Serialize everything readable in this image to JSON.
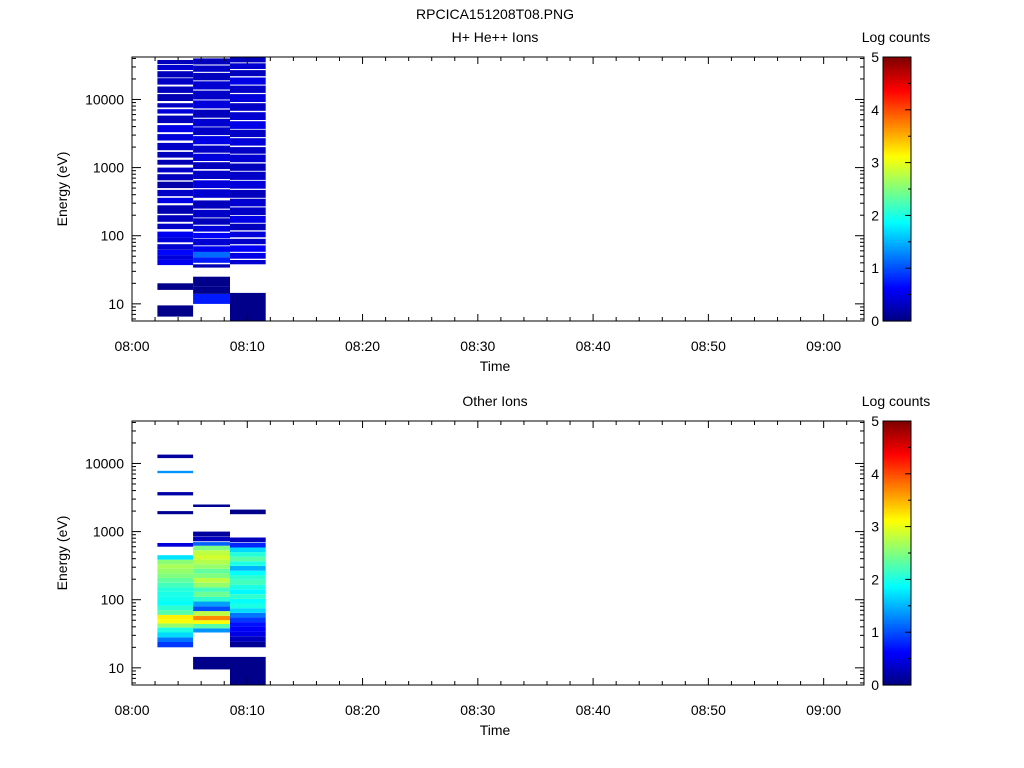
{
  "chart_data": [
    {
      "type": "heatmap",
      "title": "RPCICA151208T08.PNG",
      "subtitle": "H+ He++ Ions",
      "xlabel": "Time",
      "ylabel": "Energy (eV)",
      "yscale": "log",
      "ylim": [
        5.6,
        42000
      ],
      "xlim": [
        "08:00",
        "09:03.5"
      ],
      "x_ticks": [
        "08:00",
        "08:10",
        "08:20",
        "08:30",
        "08:40",
        "08:50",
        "09:00"
      ],
      "y_ticks": [
        10,
        100,
        1000,
        10000
      ],
      "y_tick_labels": [
        "10",
        "100",
        "1000",
        "10000"
      ],
      "colorbar": {
        "label": "Log counts",
        "min": 0,
        "max": 5,
        "ticks": [
          "0",
          "1",
          "2",
          "3",
          "4",
          "5"
        ],
        "colormap": "jet"
      },
      "time_bins": [
        {
          "start": "08:02.2",
          "end": "08:05.3",
          "cells": [
            [
              6.5,
              9.5,
              0.05
            ],
            [
              16,
              20,
              0.05
            ],
            [
              37,
              45,
              0.55
            ],
            [
              45,
              52,
              0.45
            ],
            [
              52,
              62,
              0.65
            ],
            [
              62,
              75,
              0.4
            ],
            [
              80,
              95,
              0.45
            ],
            [
              95,
              115,
              0.55
            ],
            [
              125,
              150,
              0.35
            ],
            [
              160,
              200,
              0.3
            ],
            [
              210,
              280,
              0.25
            ],
            [
              300,
              360,
              0.5
            ],
            [
              380,
              470,
              0.35
            ],
            [
              500,
              620,
              0.2
            ],
            [
              650,
              800,
              0.3
            ],
            [
              850,
              1000,
              0.35
            ],
            [
              1100,
              1300,
              0.25
            ],
            [
              1400,
              1700,
              0.3
            ],
            [
              1800,
              2300,
              0.35
            ],
            [
              2500,
              3100,
              0.45
            ],
            [
              3300,
              4200,
              0.5
            ],
            [
              4500,
              5800,
              0.3
            ],
            [
              6200,
              7200,
              0.45
            ],
            [
              7600,
              8800,
              0.35
            ],
            [
              9500,
              12000,
              0.25
            ],
            [
              12500,
              15500,
              0.3
            ],
            [
              16500,
              20500,
              0.35
            ],
            [
              21000,
              26000,
              0.3
            ],
            [
              27000,
              32000,
              0.4
            ],
            [
              33000,
              38000,
              0.3
            ]
          ]
        },
        {
          "start": "08:05.3",
          "end": "08:08.5",
          "cells": [
            [
              10,
              14,
              0.75
            ],
            [
              14,
              18,
              0.05
            ],
            [
              18,
              25,
              0.05
            ],
            [
              34,
              38,
              0.25
            ],
            [
              40,
              48,
              0.75
            ],
            [
              48,
              58,
              1.15
            ],
            [
              58,
              70,
              0.55
            ],
            [
              72,
              90,
              0.4
            ],
            [
              92,
              110,
              0.6
            ],
            [
              115,
              140,
              0.45
            ],
            [
              145,
              180,
              0.3
            ],
            [
              185,
              240,
              0.35
            ],
            [
              250,
              330,
              0.3
            ],
            [
              360,
              480,
              0.4
            ],
            [
              500,
              650,
              0.45
            ],
            [
              680,
              900,
              0.35
            ],
            [
              950,
              1200,
              0.3
            ],
            [
              1250,
              1600,
              0.45
            ],
            [
              1650,
              2100,
              0.35
            ],
            [
              2200,
              2900,
              0.5
            ],
            [
              3000,
              3900,
              0.35
            ],
            [
              4000,
              5200,
              0.4
            ],
            [
              5400,
              7100,
              0.3
            ],
            [
              7400,
              9700,
              0.45
            ],
            [
              10000,
              13500,
              0.35
            ],
            [
              14000,
              18500,
              0.4
            ],
            [
              19000,
              24500,
              0.3
            ],
            [
              25500,
              31500,
              0.35
            ],
            [
              32500,
              40000,
              0.3
            ]
          ]
        },
        {
          "start": "08:08.5",
          "end": "08:11.6",
          "cells": [
            [
              5.6,
              14.5,
              0.05
            ],
            [
              38,
              44,
              0.4
            ],
            [
              46,
              56,
              0.5
            ],
            [
              58,
              72,
              0.6
            ],
            [
              75,
              90,
              0.35
            ],
            [
              95,
              115,
              0.45
            ],
            [
              120,
              150,
              0.3
            ],
            [
              155,
              195,
              0.5
            ],
            [
              200,
              260,
              0.35
            ],
            [
              270,
              350,
              0.4
            ],
            [
              360,
              470,
              0.3
            ],
            [
              490,
              640,
              0.45
            ],
            [
              660,
              870,
              0.35
            ],
            [
              900,
              1150,
              0.3
            ],
            [
              1200,
              1550,
              0.4
            ],
            [
              1600,
              2000,
              0.35
            ],
            [
              2100,
              2700,
              0.45
            ],
            [
              2800,
              3600,
              0.35
            ],
            [
              3700,
              4800,
              0.5
            ],
            [
              5000,
              6500,
              0.4
            ],
            [
              6800,
              8800,
              0.35
            ],
            [
              9200,
              12000,
              0.45
            ],
            [
              12500,
              16000,
              0.35
            ],
            [
              16500,
              21000,
              0.5
            ],
            [
              22000,
              27000,
              0.3
            ],
            [
              28000,
              34000,
              0.4
            ],
            [
              35000,
              42000,
              0.3
            ]
          ]
        }
      ]
    },
    {
      "type": "heatmap",
      "title": "",
      "subtitle": "Other Ions",
      "xlabel": "Time",
      "ylabel": "Energy (eV)",
      "yscale": "log",
      "ylim": [
        5.6,
        42000
      ],
      "xlim": [
        "08:00",
        "09:03.5"
      ],
      "x_ticks": [
        "08:00",
        "08:10",
        "08:20",
        "08:30",
        "08:40",
        "08:50",
        "09:00"
      ],
      "y_ticks": [
        10,
        100,
        1000,
        10000
      ],
      "y_tick_labels": [
        "10",
        "100",
        "1000",
        "10000"
      ],
      "colorbar": {
        "label": "Log counts",
        "min": 0,
        "max": 5,
        "ticks": [
          "0",
          "1",
          "2",
          "3",
          "4",
          "5"
        ],
        "colormap": "jet"
      },
      "time_bins": [
        {
          "start": "08:02.2",
          "end": "08:05.3",
          "cells": [
            [
              20,
              24,
              0.9
            ],
            [
              24,
              28,
              1.2
            ],
            [
              28,
              33,
              1.7
            ],
            [
              33,
              39,
              2.0
            ],
            [
              39,
              45,
              2.6
            ],
            [
              45,
              52,
              3.1
            ],
            [
              52,
              60,
              3.2
            ],
            [
              60,
              70,
              2.3
            ],
            [
              70,
              82,
              2.1
            ],
            [
              82,
              96,
              1.9
            ],
            [
              96,
              112,
              1.95
            ],
            [
              112,
              130,
              2.0
            ],
            [
              130,
              152,
              2.05
            ],
            [
              152,
              178,
              2.2
            ],
            [
              178,
              208,
              2.35
            ],
            [
              208,
              243,
              2.5
            ],
            [
              243,
              284,
              2.6
            ],
            [
              284,
              332,
              2.7
            ],
            [
              332,
              388,
              2.55
            ],
            [
              388,
              450,
              1.75
            ],
            [
              600,
              680,
              0.45
            ],
            [
              1800,
              2000,
              0.1
            ],
            [
              3400,
              3800,
              0.2
            ],
            [
              7200,
              7800,
              1.35
            ],
            [
              12000,
              13500,
              0.15
            ]
          ]
        },
        {
          "start": "08:05.3",
          "end": "08:08.5",
          "cells": [
            [
              9.5,
              14.5,
              0.05
            ],
            [
              33,
              38,
              1.35
            ],
            [
              38,
              44,
              2.3
            ],
            [
              44,
              50,
              3.1
            ],
            [
              50,
              58,
              3.7
            ],
            [
              58,
              68,
              2.8
            ],
            [
              68,
              80,
              1.0
            ],
            [
              80,
              94,
              1.4
            ],
            [
              94,
              110,
              2.1
            ],
            [
              110,
              130,
              2.4
            ],
            [
              130,
              152,
              2.2
            ],
            [
              152,
              178,
              2.6
            ],
            [
              178,
              208,
              2.8
            ],
            [
              208,
              243,
              2.5
            ],
            [
              243,
              284,
              2.35
            ],
            [
              284,
              332,
              2.6
            ],
            [
              332,
              388,
              2.75
            ],
            [
              388,
              454,
              2.9
            ],
            [
              454,
              530,
              2.8
            ],
            [
              530,
              620,
              2.5
            ],
            [
              620,
              700,
              1.1
            ],
            [
              720,
              840,
              0.3
            ],
            [
              850,
              1000,
              0.15
            ],
            [
              2300,
              2500,
              0.1
            ]
          ]
        },
        {
          "start": "08:08.5",
          "end": "08:11.6",
          "cells": [
            [
              5.6,
              14.5,
              0.05
            ],
            [
              20,
              24,
              0.1
            ],
            [
              24,
              29,
              0.3
            ],
            [
              29,
              34,
              0.5
            ],
            [
              34,
              40,
              0.6
            ],
            [
              40,
              47,
              0.7
            ],
            [
              47,
              55,
              0.9
            ],
            [
              55,
              64,
              1.2
            ],
            [
              64,
              75,
              1.7
            ],
            [
              75,
              88,
              2.0
            ],
            [
              88,
              103,
              1.9
            ],
            [
              103,
              121,
              2.1
            ],
            [
              121,
              142,
              1.85
            ],
            [
              142,
              166,
              2.0
            ],
            [
              166,
              195,
              2.2
            ],
            [
              195,
              228,
              2.1
            ],
            [
              228,
              267,
              1.9
            ],
            [
              267,
              313,
              1.5
            ],
            [
              313,
              366,
              2.0
            ],
            [
              366,
              428,
              2.3
            ],
            [
              428,
              500,
              2.05
            ],
            [
              500,
              585,
              1.7
            ],
            [
              585,
              685,
              0.8
            ],
            [
              700,
              820,
              0.3
            ],
            [
              1800,
              2100,
              0.05
            ]
          ]
        }
      ]
    }
  ]
}
